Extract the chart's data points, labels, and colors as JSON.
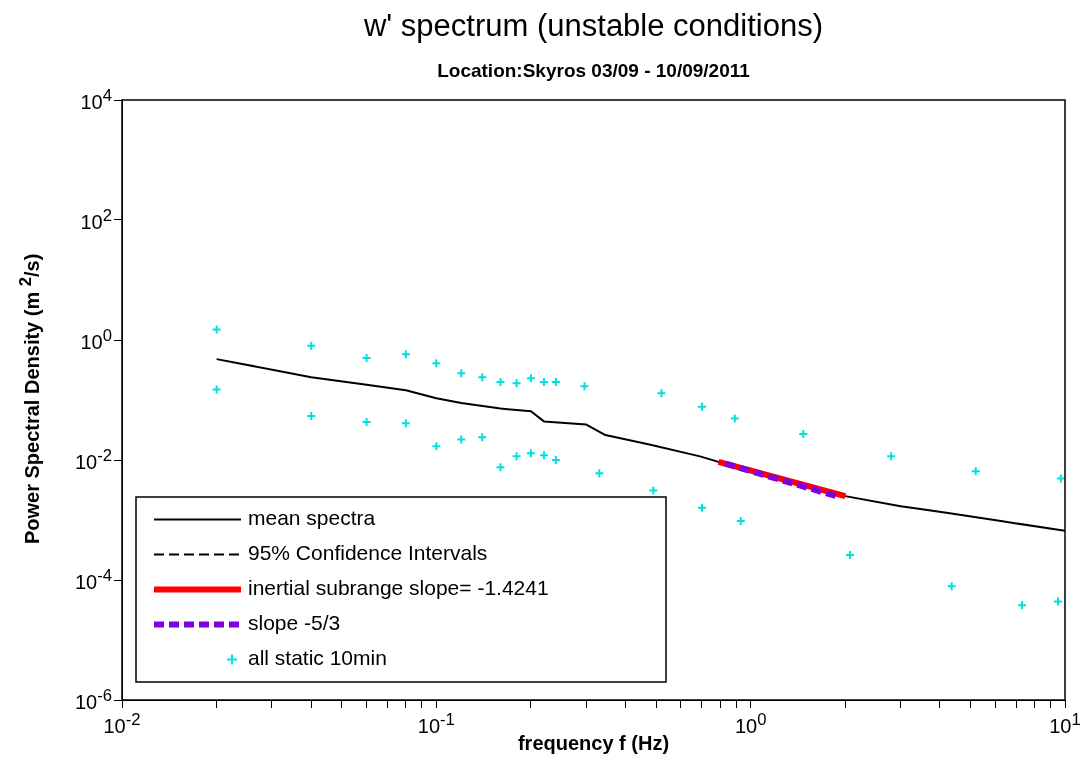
{
  "chart_data": {
    "type": "line",
    "title": "w'  spectrum (unstable conditions)",
    "subtitle": "Location:Skyros 03/09 - 10/09/2011",
    "xlabel": "frequency f (Hz)",
    "ylabel": "Power Spectral Density (m $^{2}$/s)",
    "log": "xy",
    "grid": false,
    "legend": "bottom left",
    "xlim": [
      0.01,
      10
    ],
    "ylim": [
      1e-06,
      10000
    ],
    "xticks": [
      {
        "value": 0.01,
        "label": "10$^{-2}$"
      },
      {
        "value": 0.02,
        "label": null
      },
      {
        "value": 0.03,
        "label": null
      },
      {
        "value": 0.04,
        "label": null
      },
      {
        "value": 0.05,
        "label": null
      },
      {
        "value": 0.06,
        "label": null
      },
      {
        "value": 0.07,
        "label": null
      },
      {
        "value": 0.08,
        "label": null
      },
      {
        "value": 0.09,
        "label": null
      },
      {
        "value": 0.1,
        "label": "10$^{-1}$"
      },
      {
        "value": 0.2,
        "label": null
      },
      {
        "value": 0.3,
        "label": null
      },
      {
        "value": 0.4,
        "label": null
      },
      {
        "value": 0.5,
        "label": null
      },
      {
        "value": 0.6,
        "label": null
      },
      {
        "value": 0.7,
        "label": null
      },
      {
        "value": 0.8,
        "label": null
      },
      {
        "value": 0.9,
        "label": null
      },
      {
        "value": 1,
        "label": "10$^{0}$"
      },
      {
        "value": 2,
        "label": null
      },
      {
        "value": 3,
        "label": null
      },
      {
        "value": 4,
        "label": null
      },
      {
        "value": 5,
        "label": null
      },
      {
        "value": 6,
        "label": null
      },
      {
        "value": 7,
        "label": null
      },
      {
        "value": 8,
        "label": null
      },
      {
        "value": 9,
        "label": null
      },
      {
        "value": 10,
        "label": "10$^{1}$"
      }
    ],
    "yticks": [
      {
        "value": 1e-06,
        "label": "10$^{-6}$"
      },
      {
        "value": 0.0001,
        "label": "10$^{-4}$"
      },
      {
        "value": 0.01,
        "label": "10$^{-2}$"
      },
      {
        "value": 1,
        "label": "10$^{0}$"
      },
      {
        "value": 100,
        "label": "10$^{2}$"
      },
      {
        "value": 10000,
        "label": "10$^{4}$"
      }
    ],
    "series": [
      {
        "name": "mean spectra",
        "color": "#000000",
        "line_style": "solid",
        "x": [
          0.02,
          0.04,
          0.06,
          0.08,
          0.1,
          0.12,
          0.16,
          0.2,
          0.22,
          0.3,
          0.345,
          0.48,
          0.69,
          0.79,
          2.0,
          3.0,
          4.3,
          6.25,
          10
        ],
        "values": [
          0.48,
          0.24,
          0.18,
          0.145,
          0.107,
          0.089,
          0.072,
          0.065,
          0.044,
          0.039,
          0.026,
          0.018,
          0.0115,
          0.0093,
          0.0025,
          0.0017,
          0.0013,
          0.00096,
          0.00066
        ]
      },
      {
        "name": "95% Confidence Intervals",
        "color": "#000000",
        "line_style": "dashed"
      },
      {
        "name": "inertial subrange slope= -1.4241",
        "type": "line",
        "color": "#ff0000",
        "line_style": "solid",
        "x": [
          0.79,
          2.0
        ],
        "values": [
          0.0093,
          0.0025
        ]
      },
      {
        "name": "slope -5/3",
        "type": "line",
        "color": "#8000e0",
        "line_style": "dashed",
        "x": [
          0.83,
          1.87
        ],
        "values": [
          0.0087,
          0.0025
        ]
      },
      {
        "name": "all static 10min",
        "type": "scatter",
        "color": "#00e0e0",
        "marker": "cross",
        "x": [
          0.02,
          0.02,
          0.04,
          0.04,
          0.06,
          0.06,
          0.08,
          0.08,
          0.1,
          0.1,
          0.12,
          0.12,
          0.14,
          0.14,
          0.16,
          0.16,
          0.18,
          0.18,
          0.2,
          0.2,
          0.22,
          0.22,
          0.24,
          0.24,
          0.296,
          0.33,
          0.49,
          0.52,
          0.7,
          0.7,
          0.89,
          0.93,
          1.47,
          2.07,
          2.8,
          4.36,
          5.2,
          7.3,
          9.5,
          9.7
        ],
        "values": [
          1.5,
          0.15,
          0.8,
          0.054,
          0.5,
          0.043,
          0.58,
          0.041,
          0.41,
          0.017,
          0.28,
          0.022,
          0.24,
          0.024,
          0.2,
          0.0076,
          0.19,
          0.0115,
          0.23,
          0.013,
          0.2,
          0.012,
          0.2,
          0.01,
          0.17,
          0.006,
          0.0031,
          0.13,
          0.077,
          0.0016,
          0.049,
          0.00096,
          0.027,
          0.00026,
          0.0115,
          7.9e-05,
          0.0065,
          3.8e-05,
          4.4e-05,
          0.0049
        ]
      }
    ]
  }
}
